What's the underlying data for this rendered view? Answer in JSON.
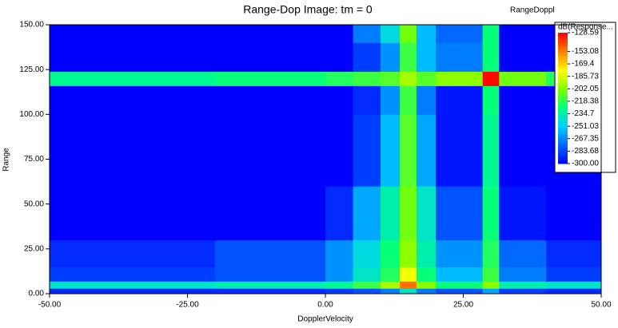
{
  "chart_data": {
    "type": "heatmap",
    "title": "Range-Dop Image: tm = 0",
    "corner_label": "RangeDoppl",
    "x_label": "DopplerVelocity",
    "y_label": "Range",
    "xlim": [
      -50,
      50
    ],
    "ylim": [
      0,
      150
    ],
    "xticks": [
      {
        "value": -50,
        "label": "-50.00"
      },
      {
        "value": -25,
        "label": "-25.00"
      },
      {
        "value": 0,
        "label": "0.00"
      },
      {
        "value": 25,
        "label": "25.00"
      },
      {
        "value": 50,
        "label": "50.00"
      }
    ],
    "yticks": [
      {
        "value": 0,
        "label": "0.00"
      },
      {
        "value": 25,
        "label": "25.00"
      },
      {
        "value": 50,
        "label": "50.00"
      },
      {
        "value": 75,
        "label": "75.00"
      },
      {
        "value": 100,
        "label": "100.00"
      },
      {
        "value": 125,
        "label": "125.00"
      },
      {
        "value": 150,
        "label": "150.00"
      }
    ],
    "x_bins": [
      -50,
      -20,
      0,
      5,
      10,
      13.5,
      16.5,
      20,
      28.5,
      31.5,
      40,
      50
    ],
    "y_bins": [
      0,
      3,
      7,
      15,
      30,
      60,
      100,
      116,
      124,
      140,
      150
    ],
    "z": [
      [
        -290,
        -290,
        -285,
        -280,
        -270,
        -240,
        -270,
        -280,
        -260,
        -285,
        -290
      ],
      [
        -240,
        -235,
        -230,
        -215,
        -195,
        -150,
        -200,
        -225,
        -200,
        -235,
        -240
      ],
      [
        -285,
        -280,
        -265,
        -240,
        -220,
        -180,
        -225,
        -255,
        -215,
        -270,
        -285
      ],
      [
        -290,
        -280,
        -265,
        -245,
        -225,
        -200,
        -235,
        -265,
        -220,
        -275,
        -290
      ],
      [
        -300,
        -300,
        -290,
        -260,
        -235,
        -205,
        -240,
        -280,
        -225,
        -295,
        -300
      ],
      [
        -300,
        -300,
        -300,
        -285,
        -255,
        -210,
        -260,
        -295,
        -230,
        -300,
        -300
      ],
      [
        -300,
        -300,
        -300,
        -290,
        -265,
        -215,
        -270,
        -295,
        -225,
        -300,
        -300
      ],
      [
        -230,
        -225,
        -220,
        -215,
        -210,
        -195,
        -210,
        -200,
        -130,
        -205,
        -220
      ],
      [
        -300,
        -300,
        -300,
        -285,
        -265,
        -215,
        -255,
        -270,
        -225,
        -300,
        -300
      ],
      [
        -300,
        -300,
        -300,
        -270,
        -245,
        -205,
        -255,
        -275,
        -225,
        -300,
        -300
      ]
    ],
    "colorbar_title": "dB(Response...",
    "zlim": [
      -300,
      -128.59
    ],
    "colorbar_ticks": [
      -128.59,
      -153.08,
      -169.4,
      -185.73,
      -202.05,
      -218.38,
      -234.7,
      -251.03,
      -267.35,
      -283.68,
      {
        "value": -300,
        "label": "-300.00"
      }
    ],
    "colormap": [
      "#0000ff",
      "#0066ff",
      "#00ccff",
      "#00ff80",
      "#80ff00",
      "#ffff00",
      "#ff8000",
      "#ff0000"
    ]
  }
}
